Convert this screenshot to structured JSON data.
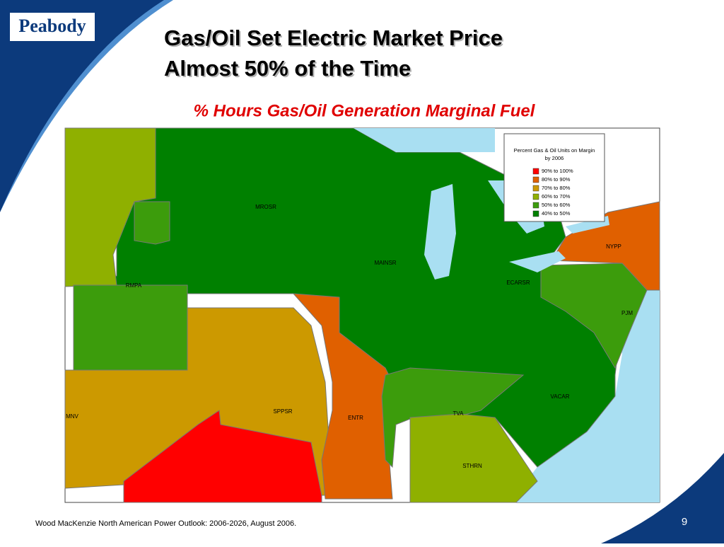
{
  "logo": "Peabody",
  "title": [
    "Gas/Oil Set Electric Market Price",
    "Almost 50% of the Time"
  ],
  "subtitle": "% Hours Gas/Oil Generation Marginal Fuel",
  "legend": {
    "title": [
      "Percent Gas & Oil Units on Margin",
      "by 2006"
    ],
    "items": [
      {
        "label": "90% to 100%",
        "color": "#ff0000"
      },
      {
        "label": "80% to 90%",
        "color": "#e06000"
      },
      {
        "label": "70% to 80%",
        "color": "#cc9900"
      },
      {
        "label": "60% to 70%",
        "color": "#8fb000"
      },
      {
        "label": "50% to 60%",
        "color": "#3c9c0c"
      },
      {
        "label": "40% to 50%",
        "color": "#008000"
      }
    ]
  },
  "regions": [
    "MROSR",
    "MAINSR",
    "ECARSR",
    "NYPP",
    "PJM",
    "RMPA",
    "SPPSR",
    "ENTR",
    "TVA",
    "VACAR",
    "STHRN",
    "MNV"
  ],
  "footnote": "Wood MacKenzie North American Power Outlook:  2006-2026, August 2006.",
  "page_number": "9"
}
